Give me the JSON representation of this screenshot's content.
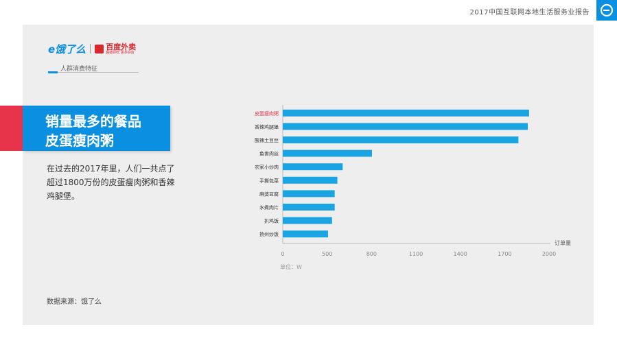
{
  "header": {
    "report_title": "2017中国互联网本地生活服务业报告"
  },
  "brand": {
    "eleme": "e饿了么",
    "baidu": "百度外卖",
    "baidu_tagline": "超级好吃  更多好店"
  },
  "section": {
    "label": "人群消费特征"
  },
  "headline": {
    "line1": "销量最多的餐品",
    "line2": "皮蛋瘦肉粥"
  },
  "description": "在过去的2017年里，人们一共点了超过1800万份的皮蛋瘦肉粥和香辣鸡腿堡。",
  "source": "数据来源：饿了么",
  "colors": {
    "accent": "#0b8fe0",
    "highlight": "#e8344b",
    "bar": "#1aa4e2"
  },
  "chart_data": {
    "type": "bar",
    "orientation": "horizontal",
    "categories": [
      "皮蛋瘦肉粥",
      "香辣鸡腿堡",
      "酸辣土豆丝",
      "鱼香肉丝",
      "农家小炒肉",
      "手撕包菜",
      "麻婆豆腐",
      "水煮肉片",
      "扒鸡饭",
      "扬州炒饭"
    ],
    "values": [
      1850,
      1840,
      1770,
      670,
      450,
      410,
      390,
      390,
      370,
      340
    ],
    "highlight_index": 0,
    "xlabel": "订单量",
    "xticks": [
      "0",
      "500",
      "800",
      "1100",
      "1400",
      "1700",
      "2000"
    ],
    "unit_note": "单位：W",
    "xlim": [
      0,
      2000
    ],
    "grid": false
  }
}
